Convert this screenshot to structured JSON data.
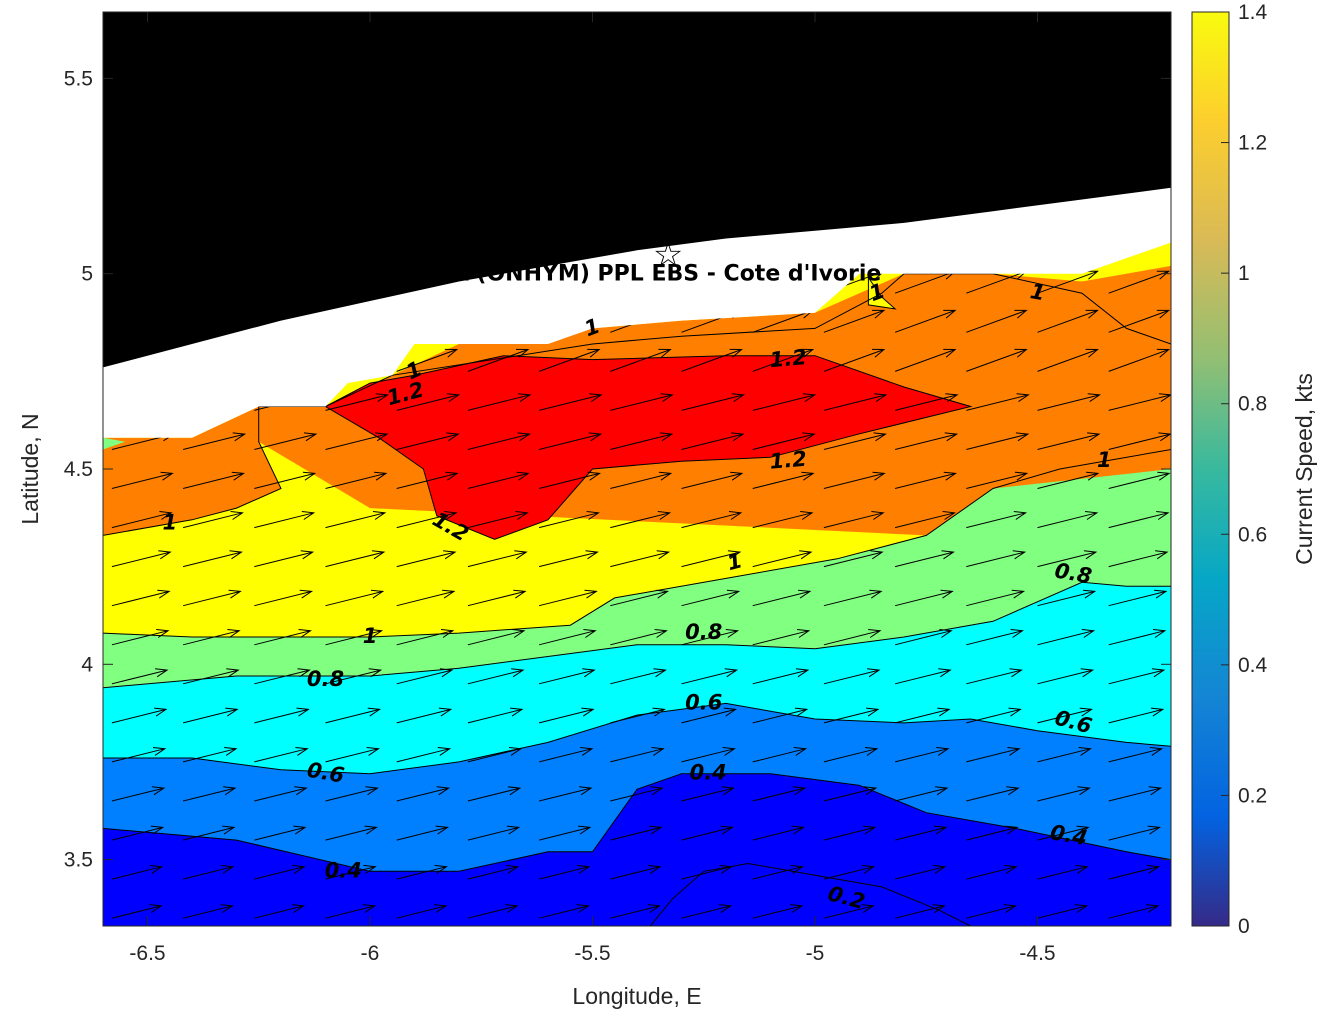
{
  "chart_data": {
    "type": "contour",
    "site_label": "CSA (ONHYM) PPL EBS  - Cote d'Ivorie",
    "site_marker": {
      "lon": -5.33,
      "lat": 5.05,
      "symbol": "☆"
    },
    "xlabel": "Longitude, E",
    "ylabel": "Latitude, N",
    "xlim": [
      -6.6,
      -4.2
    ],
    "ylim": [
      3.33,
      5.67
    ],
    "xticks": [
      -6.5,
      -6,
      -5.5,
      -5,
      -4.5
    ],
    "xtick_labels": [
      "-6.5",
      "-6",
      "-5.5",
      "-5",
      "-4.5"
    ],
    "yticks": [
      3.5,
      4,
      4.5,
      5,
      5.5
    ],
    "ytick_labels": [
      "3.5",
      "4",
      "4.5",
      "5",
      "5.5"
    ],
    "colorbar": {
      "label": "Current Speed, kts",
      "range": [
        0,
        1.4
      ],
      "ticks": [
        0,
        0.2,
        0.4,
        0.6,
        0.8,
        1,
        1.2,
        1.4
      ],
      "tick_labels": [
        "0",
        "0.2",
        "0.4",
        "0.6",
        "0.8",
        "1",
        "1.2",
        "1.4"
      ],
      "colormap": "parula"
    },
    "levels": [
      {
        "min": 0.2,
        "color": "#0000ff"
      },
      {
        "min": 0.4,
        "color": "#0080ff"
      },
      {
        "min": 0.6,
        "color": "#00ffff"
      },
      {
        "min": 0.8,
        "color": "#80ff80"
      },
      {
        "min": 1.0,
        "color": "#ffff00"
      },
      {
        "min": 1.2,
        "color": "#ff8000"
      },
      {
        "min": 1.4,
        "color": "#ff0000"
      }
    ],
    "contours": {
      "c04": [
        [
          -6.6,
          3.58
        ],
        [
          -6.3,
          3.55
        ],
        [
          -6.0,
          3.47
        ],
        [
          -5.8,
          3.47
        ],
        [
          -5.6,
          3.52
        ],
        [
          -5.5,
          3.52
        ],
        [
          -5.4,
          3.68
        ],
        [
          -5.3,
          3.72
        ],
        [
          -5.1,
          3.72
        ],
        [
          -4.9,
          3.69
        ],
        [
          -4.75,
          3.62
        ],
        [
          -4.55,
          3.58
        ],
        [
          -4.3,
          3.52
        ],
        [
          -4.2,
          3.5
        ]
      ],
      "c06": [
        [
          -6.6,
          3.76
        ],
        [
          -6.4,
          3.76
        ],
        [
          -6.2,
          3.73
        ],
        [
          -6.0,
          3.72
        ],
        [
          -5.8,
          3.75
        ],
        [
          -5.6,
          3.8
        ],
        [
          -5.4,
          3.87
        ],
        [
          -5.2,
          3.9
        ],
        [
          -5.0,
          3.86
        ],
        [
          -4.8,
          3.85
        ],
        [
          -4.65,
          3.86
        ],
        [
          -4.5,
          3.83
        ],
        [
          -4.3,
          3.8
        ],
        [
          -4.2,
          3.79
        ]
      ],
      "c08": [
        [
          -6.6,
          3.94
        ],
        [
          -6.3,
          3.97
        ],
        [
          -6.0,
          3.97
        ],
        [
          -5.8,
          3.99
        ],
        [
          -5.6,
          4.02
        ],
        [
          -5.4,
          4.05
        ],
        [
          -5.2,
          4.05
        ],
        [
          -5.0,
          4.04
        ],
        [
          -4.8,
          4.07
        ],
        [
          -4.6,
          4.11
        ],
        [
          -4.4,
          4.21
        ],
        [
          -4.3,
          4.2
        ],
        [
          -4.2,
          4.2
        ]
      ],
      "c10": [
        [
          -6.6,
          4.08
        ],
        [
          -6.4,
          4.07
        ],
        [
          -6.0,
          4.07
        ],
        [
          -5.8,
          4.08
        ],
        [
          -5.55,
          4.1
        ],
        [
          -5.45,
          4.17
        ],
        [
          -5.2,
          4.22
        ],
        [
          -4.95,
          4.27
        ],
        [
          -4.75,
          4.33
        ],
        [
          -4.6,
          4.45
        ],
        [
          -4.45,
          4.5
        ],
        [
          -4.2,
          4.55
        ]
      ],
      "c12": [
        [
          -6.6,
          4.33
        ],
        [
          -6.4,
          4.37
        ],
        [
          -6.3,
          4.4
        ],
        [
          -6.2,
          4.45
        ],
        [
          -6.25,
          4.57
        ],
        [
          -6.25,
          4.66
        ],
        [
          -6.1,
          4.66
        ],
        [
          -5.95,
          4.74
        ],
        [
          -5.5,
          4.82
        ],
        [
          -5.3,
          4.84
        ],
        [
          -5.0,
          4.86
        ],
        [
          -4.9,
          4.92
        ],
        [
          -4.85,
          4.95
        ],
        [
          -4.8,
          5.0
        ],
        [
          -4.6,
          5.0
        ],
        [
          -4.4,
          4.95
        ],
        [
          -4.3,
          4.86
        ],
        [
          -4.2,
          4.82
        ]
      ],
      "c12_inner": [
        [
          -6.1,
          4.66
        ],
        [
          -6.0,
          4.72
        ],
        [
          -5.9,
          4.74
        ],
        [
          -5.7,
          4.79
        ],
        [
          -5.5,
          4.78
        ],
        [
          -5.2,
          4.79
        ],
        [
          -5.0,
          4.79
        ],
        [
          -4.8,
          4.71
        ],
        [
          -4.65,
          4.66
        ],
        [
          -4.9,
          4.59
        ],
        [
          -5.1,
          4.53
        ],
        [
          -5.3,
          4.52
        ],
        [
          -5.5,
          4.5
        ],
        [
          -5.6,
          4.37
        ],
        [
          -5.72,
          4.32
        ],
        [
          -5.85,
          4.38
        ],
        [
          -5.88,
          4.5
        ],
        [
          -5.98,
          4.58
        ],
        [
          -6.1,
          4.66
        ]
      ]
    },
    "contour_labels": [
      {
        "text": "0.2",
        "lon": -4.93,
        "lat": 3.4,
        "angle": 15
      },
      {
        "text": "0.4",
        "lon": -6.06,
        "lat": 3.47,
        "angle": 0
      },
      {
        "text": "0.4",
        "lon": -5.24,
        "lat": 3.72,
        "angle": 0
      },
      {
        "text": "0.4",
        "lon": -4.43,
        "lat": 3.56,
        "angle": 10
      },
      {
        "text": "0.6",
        "lon": -6.1,
        "lat": 3.72,
        "angle": 10
      },
      {
        "text": "0.6",
        "lon": -5.25,
        "lat": 3.9,
        "angle": 0
      },
      {
        "text": "0.6",
        "lon": -4.42,
        "lat": 3.85,
        "angle": 15
      },
      {
        "text": "0.8",
        "lon": -6.1,
        "lat": 3.96,
        "angle": 0
      },
      {
        "text": "0.8",
        "lon": -5.25,
        "lat": 4.08,
        "angle": 0
      },
      {
        "text": "0.8",
        "lon": -4.42,
        "lat": 4.23,
        "angle": 10
      },
      {
        "text": "1",
        "lon": -6.0,
        "lat": 4.07,
        "angle": 0
      },
      {
        "text": "1",
        "lon": -5.18,
        "lat": 4.26,
        "angle": -15
      },
      {
        "text": "1",
        "lon": -6.45,
        "lat": 4.36,
        "angle": 0
      },
      {
        "text": "1",
        "lon": -4.35,
        "lat": 4.52,
        "angle": 0
      },
      {
        "text": "1",
        "lon": -5.9,
        "lat": 4.75,
        "angle": -25
      },
      {
        "text": "1",
        "lon": -5.5,
        "lat": 4.86,
        "angle": -20
      },
      {
        "text": "1",
        "lon": -4.5,
        "lat": 4.95,
        "angle": 10
      },
      {
        "text": "1",
        "lon": -4.86,
        "lat": 4.95,
        "angle": -20
      },
      {
        "text": "1.2",
        "lon": -5.92,
        "lat": 4.69,
        "angle": -15
      },
      {
        "text": "1.2",
        "lon": -5.06,
        "lat": 4.78,
        "angle": -5
      },
      {
        "text": "1.2",
        "lon": -5.06,
        "lat": 4.52,
        "angle": -5
      },
      {
        "text": "1.2",
        "lon": -5.82,
        "lat": 4.35,
        "angle": 30
      }
    ],
    "vectors": "uniform grid every 0.15° lon × 0.1° lat, directed ENE (≈15–20°), length ∝ current speed"
  }
}
